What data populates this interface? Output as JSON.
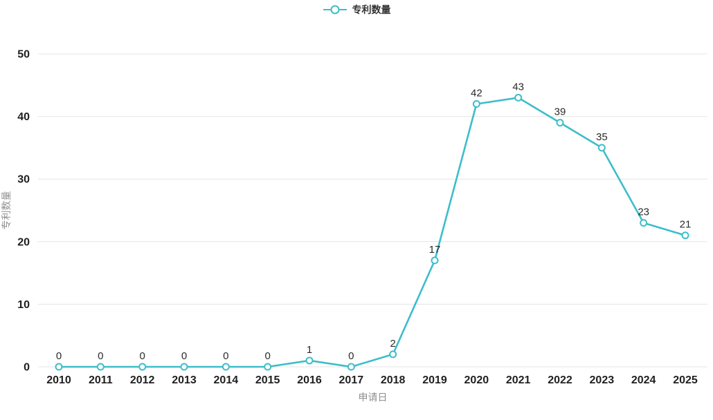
{
  "legend": {
    "label": "专利数量"
  },
  "colors": {
    "line": "#3cbdca",
    "marker_fill": "#ffffff",
    "grid": "#e4e4e4",
    "tick_label": "#1f1f1f",
    "value_label": "#2a2a2a",
    "axis_title": "#8f8f8f",
    "legend_text": "#333333",
    "background": "#ffffff"
  },
  "chart_data": {
    "type": "line",
    "title": "",
    "x": [
      "2010",
      "2011",
      "2012",
      "2013",
      "2014",
      "2015",
      "2016",
      "2017",
      "2018",
      "2019",
      "2020",
      "2021",
      "2022",
      "2023",
      "2024",
      "2025"
    ],
    "series": [
      {
        "name": "专利数量",
        "values": [
          0,
          0,
          0,
          0,
          0,
          0,
          1,
          0,
          2,
          17,
          42,
          43,
          39,
          35,
          23,
          21
        ]
      }
    ],
    "xlabel": "申请日",
    "ylabel": "专利数量",
    "ylim": [
      0,
      50
    ],
    "yticks": [
      0,
      10,
      20,
      30,
      40,
      50
    ],
    "grid": true,
    "legend_position": "top",
    "point_labels": true
  }
}
